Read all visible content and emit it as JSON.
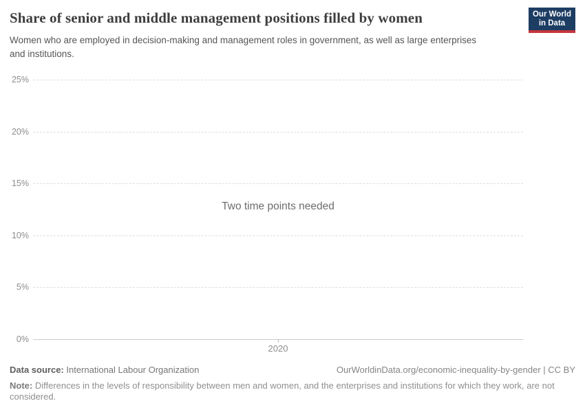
{
  "header": {
    "title": "Share of senior and middle management positions filled by women",
    "subtitle": "Women who are employed in decision-making and management roles in government, as well as large enterprises and institutions.",
    "logo": {
      "line1": "Our World",
      "line2": "in Data",
      "background_color": "#1d3d63",
      "accent_color": "#c5353c"
    }
  },
  "chart_data": {
    "type": "line",
    "title": "Share of senior and middle management positions filled by women",
    "subtitle": "Women who are employed in decision-making and management roles in government, as well as large enterprises and institutions.",
    "series": [],
    "empty_message": "Two time points needed",
    "xlabel": "",
    "ylabel": "",
    "ylim": [
      0,
      25
    ],
    "y_ticks": [
      {
        "value": 0,
        "label": "0%"
      },
      {
        "value": 5,
        "label": "5%"
      },
      {
        "value": 10,
        "label": "10%"
      },
      {
        "value": 15,
        "label": "15%"
      },
      {
        "value": 20,
        "label": "20%"
      },
      {
        "value": 25,
        "label": "25%"
      }
    ],
    "x_ticks": [
      {
        "label": "2020"
      }
    ],
    "grid": "horizontal-dashed",
    "legend": "none"
  },
  "footer": {
    "datasource_label": "Data source:",
    "datasource_value": " International Labour Organization",
    "rights": "OurWorldinData.org/economic-inequality-by-gender | CC BY",
    "note_label": "Note:",
    "note_value": " Differences in the levels of responsibility between men and women, and the enterprises and institutions for which they work, are not considered."
  }
}
